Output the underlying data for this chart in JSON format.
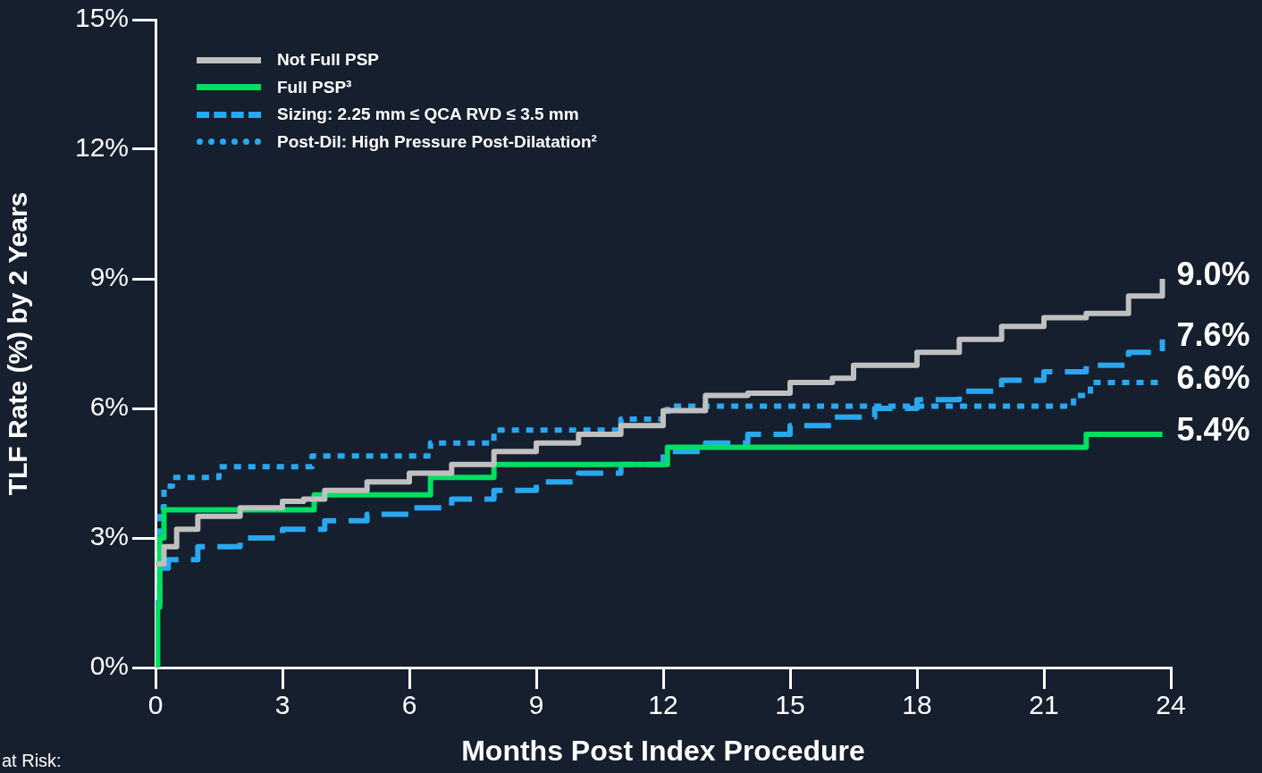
{
  "chart_data": {
    "type": "step",
    "xlabel": "Months Post Index Procedure",
    "ylabel": "TLF Rate (%) by 2 Years",
    "annotations": [
      "at Risk:"
    ],
    "xlim": [
      0,
      24
    ],
    "xticks": [
      0,
      3,
      6,
      9,
      12,
      15,
      18,
      21,
      24
    ],
    "ylim": [
      0,
      15
    ],
    "yticks": [
      {
        "value": 0,
        "label": "0%"
      },
      {
        "value": 3,
        "label": "3%"
      },
      {
        "value": 6,
        "label": "6%"
      },
      {
        "value": 9,
        "label": "9%"
      },
      {
        "value": 12,
        "label": "12%"
      },
      {
        "value": 15,
        "label": "15%"
      }
    ],
    "grid": false,
    "legend": "top left",
    "marker": "none",
    "series": [
      {
        "name": "Not Full PSP",
        "color": "#c0c0c0",
        "line_style": "solid",
        "x": [
          0,
          0.2,
          0.5,
          1,
          2,
          3,
          3.5,
          4,
          5,
          6,
          7,
          8,
          9,
          10,
          11,
          12,
          13,
          14,
          15,
          16,
          16.5,
          17,
          18,
          19,
          20,
          21,
          22,
          23,
          23.8
        ],
        "values": [
          2.4,
          2.8,
          3.2,
          3.5,
          3.7,
          3.85,
          3.9,
          4.1,
          4.3,
          4.5,
          4.7,
          5.0,
          5.2,
          5.4,
          5.6,
          5.95,
          6.3,
          6.35,
          6.6,
          6.7,
          7.0,
          7.0,
          7.3,
          7.6,
          7.9,
          8.1,
          8.2,
          8.6,
          9.0
        ],
        "value_labels": [
          null,
          null,
          null,
          null,
          null,
          null,
          null,
          null,
          null,
          null,
          null,
          null,
          null,
          null,
          null,
          null,
          null,
          null,
          null,
          null,
          null,
          null,
          null,
          null,
          null,
          null,
          null,
          null,
          "9.0%"
        ]
      },
      {
        "name": "Full PSP³",
        "color": "#00e060",
        "line_style": "solid",
        "x": [
          0,
          0.05,
          0.1,
          0.2,
          3.75,
          6.5,
          8,
          12.1,
          22,
          23.8
        ],
        "values": [
          0,
          1.4,
          3.0,
          3.65,
          4.0,
          4.4,
          4.7,
          5.1,
          5.4,
          5.4
        ],
        "value_labels": [
          null,
          null,
          null,
          null,
          null,
          null,
          null,
          null,
          null,
          "5.4%"
        ]
      },
      {
        "name": "Sizing: 2.25 mm ≤ QCA RVD ≤ 3.5 mm",
        "color": "#29a8f0",
        "line_style": "dashed",
        "x": [
          0,
          0.1,
          0.3,
          1,
          2,
          3,
          4,
          5,
          6,
          7,
          8,
          9,
          10,
          11,
          12,
          13,
          14,
          15,
          16,
          17,
          18,
          19,
          20,
          21,
          22,
          23,
          23.8
        ],
        "values": [
          1.5,
          2.3,
          2.5,
          2.8,
          3.0,
          3.2,
          3.4,
          3.55,
          3.7,
          3.9,
          4.1,
          4.3,
          4.5,
          4.7,
          5.0,
          5.2,
          5.4,
          5.6,
          5.8,
          6.0,
          6.2,
          6.4,
          6.65,
          6.85,
          7.0,
          7.3,
          7.6
        ],
        "value_labels": [
          null,
          null,
          null,
          null,
          null,
          null,
          null,
          null,
          null,
          null,
          null,
          null,
          null,
          null,
          null,
          null,
          null,
          null,
          null,
          null,
          null,
          null,
          null,
          null,
          null,
          null,
          "7.6%"
        ]
      },
      {
        "name": "Post-Dil: High Pressure Post-Dilatation²",
        "color": "#29a8f0",
        "line_style": "dotted",
        "x": [
          0,
          0.1,
          0.2,
          0.4,
          1.5,
          3.7,
          6.5,
          8.0,
          11,
          12.1,
          21.7,
          22.1,
          23.8
        ],
        "values": [
          1.5,
          3.7,
          4.2,
          4.4,
          4.65,
          4.9,
          5.2,
          5.5,
          5.75,
          6.05,
          6.3,
          6.6,
          6.6
        ],
        "value_labels": [
          null,
          null,
          null,
          null,
          null,
          null,
          null,
          null,
          null,
          null,
          null,
          null,
          "6.6%"
        ]
      }
    ]
  }
}
